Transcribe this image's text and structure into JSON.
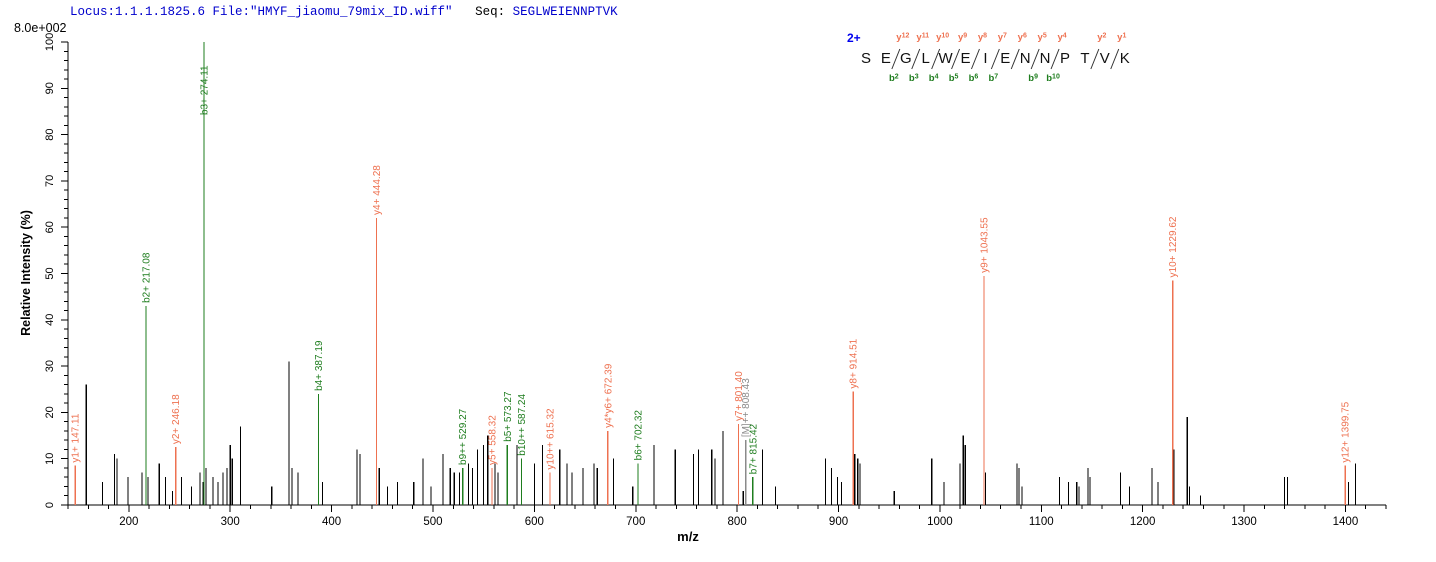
{
  "header": {
    "locus_file": "Locus:1.1.1.1825.6 File:\"HMYF_jiaomu_79mix_ID.wiff\"",
    "seq_label": "Seq:",
    "sequence": "SEGLWEIENNPTVK",
    "max_intensity_label": "8.0e+002"
  },
  "colors": {
    "y_ion": "#ee7150",
    "b_ion": "#1e7d1e",
    "precursor": "#8a8a8a",
    "peak_black": "#000000",
    "header_blue": "#0000cc",
    "charge_blue": "#0000ee",
    "axis_black": "#000000"
  },
  "chart_data": {
    "type": "bar",
    "title": "",
    "xlabel": "m/z",
    "ylabel": "Relative  Intensity (%)",
    "xlim": [
      140,
      1440
    ],
    "ylim": [
      0,
      100
    ],
    "x_major_ticks": [
      200,
      300,
      400,
      500,
      600,
      700,
      800,
      900,
      1000,
      1100,
      1200,
      1300,
      1400
    ],
    "x_minor_step": 20,
    "y_major_ticks": [
      0,
      10,
      20,
      30,
      40,
      50,
      60,
      70,
      80,
      90,
      100
    ],
    "y_minor_step": 2,
    "grid": false,
    "precursor_charge": "2+",
    "peptide": {
      "residues": [
        "S",
        "E",
        "G",
        "L",
        "W",
        "E",
        "I",
        "E",
        "N",
        "N",
        "P",
        "T",
        "V",
        "K"
      ],
      "cleavages": [
        {
          "after": 1,
          "y": "y12",
          "b": "b2"
        },
        {
          "after": 2,
          "y": "y11",
          "b": "b3"
        },
        {
          "after": 3,
          "y": "y10",
          "b": "b4"
        },
        {
          "after": 4,
          "y": "y9",
          "b": "b5"
        },
        {
          "after": 5,
          "y": "y8",
          "b": "b6"
        },
        {
          "after": 6,
          "y": "y7",
          "b": "b7"
        },
        {
          "after": 7,
          "y": "y6",
          "b": null
        },
        {
          "after": 8,
          "y": "y5",
          "b": "b9"
        },
        {
          "after": 9,
          "y": "y4",
          "b": "b10"
        },
        {
          "after": 11,
          "y": "y2",
          "b": null
        },
        {
          "after": 12,
          "y": "y1",
          "b": null
        }
      ]
    },
    "labeled_peaks": [
      {
        "mz": 147.11,
        "intensity": 8.5,
        "type": "y",
        "label": "y1+ 147.11"
      },
      {
        "mz": 217.08,
        "intensity": 43,
        "type": "b",
        "label": "b2+ 217.08"
      },
      {
        "mz": 246.18,
        "intensity": 12.5,
        "type": "y",
        "label": "y2+ 246.18"
      },
      {
        "mz": 274.11,
        "intensity": 100,
        "type": "b",
        "label": "b3+ 274.11"
      },
      {
        "mz": 387.19,
        "intensity": 24,
        "type": "b",
        "label": "b4+ 387.19"
      },
      {
        "mz": 444.28,
        "intensity": 62,
        "type": "y",
        "label": "y4+ 444.28"
      },
      {
        "mz": 529.27,
        "intensity": 8,
        "type": "b",
        "label": "b9++ 529.27"
      },
      {
        "mz": 558.32,
        "intensity": 8,
        "type": "y",
        "label": "y5+ 558.32"
      },
      {
        "mz": 573.27,
        "intensity": 13,
        "type": "b",
        "label": "b5+ 573.27"
      },
      {
        "mz": 587.24,
        "intensity": 10,
        "type": "b",
        "label": "b10++ 587.24"
      },
      {
        "mz": 615.32,
        "intensity": 7,
        "type": "y",
        "label": "y10++ 615.32"
      },
      {
        "mz": 672.39,
        "intensity": 16,
        "type": "y",
        "label": "y4*y6+ 672.39"
      },
      {
        "mz": 702.32,
        "intensity": 9,
        "type": "b",
        "label": "b6+ 702.32"
      },
      {
        "mz": 801.4,
        "intensity": 17.5,
        "type": "y",
        "label": "y7+ 801.40"
      },
      {
        "mz": 808.43,
        "intensity": 14,
        "type": "M",
        "label": "[M]++ 808.43"
      },
      {
        "mz": 815.42,
        "intensity": 6,
        "type": "b",
        "label": "b7+ 815.42"
      },
      {
        "mz": 914.51,
        "intensity": 24.5,
        "type": "y",
        "label": "y8+ 914.51"
      },
      {
        "mz": 1043.55,
        "intensity": 49.5,
        "type": "y",
        "label": "y9+ 1043.55"
      },
      {
        "mz": 1229.62,
        "intensity": 48.5,
        "type": "y",
        "label": "y10+ 1229.62"
      },
      {
        "mz": 1399.75,
        "intensity": 8.5,
        "type": "y",
        "label": "y12+ 1399.75"
      }
    ],
    "unlabeled_peaks": [
      [
        158,
        26
      ],
      [
        174,
        5
      ],
      [
        186,
        11
      ],
      [
        188.5,
        10
      ],
      [
        199,
        6
      ],
      [
        213,
        7
      ],
      [
        219,
        6
      ],
      [
        230,
        9
      ],
      [
        236,
        6
      ],
      [
        243,
        3
      ],
      [
        252,
        6
      ],
      [
        262,
        4
      ],
      [
        270,
        7
      ],
      [
        273,
        5
      ],
      [
        276,
        8
      ],
      [
        283,
        6
      ],
      [
        288,
        5
      ],
      [
        293,
        7
      ],
      [
        297,
        8
      ],
      [
        300,
        13
      ],
      [
        302,
        10
      ],
      [
        310,
        17
      ],
      [
        341,
        4
      ],
      [
        358,
        31
      ],
      [
        361,
        8
      ],
      [
        367,
        7
      ],
      [
        391,
        5
      ],
      [
        425,
        12
      ],
      [
        428,
        11
      ],
      [
        447,
        8
      ],
      [
        455,
        4
      ],
      [
        465,
        5
      ],
      [
        481,
        5
      ],
      [
        490,
        10
      ],
      [
        498,
        4
      ],
      [
        510,
        11
      ],
      [
        517,
        8
      ],
      [
        521,
        7
      ],
      [
        526,
        7
      ],
      [
        535,
        9
      ],
      [
        539,
        8
      ],
      [
        544,
        12
      ],
      [
        550,
        13
      ],
      [
        554,
        15
      ],
      [
        561,
        9
      ],
      [
        564,
        7
      ],
      [
        583,
        13
      ],
      [
        600,
        9
      ],
      [
        608,
        13
      ],
      [
        625,
        12
      ],
      [
        632,
        9
      ],
      [
        637,
        7
      ],
      [
        648,
        8
      ],
      [
        659,
        9
      ],
      [
        662,
        8
      ],
      [
        678,
        10
      ],
      [
        697,
        4
      ],
      [
        718,
        13
      ],
      [
        739,
        12
      ],
      [
        757,
        11
      ],
      [
        762,
        12
      ],
      [
        775,
        12
      ],
      [
        778,
        10
      ],
      [
        786,
        16
      ],
      [
        806,
        3
      ],
      [
        825,
        12
      ],
      [
        838,
        4
      ],
      [
        887,
        10
      ],
      [
        893,
        8
      ],
      [
        899,
        6
      ],
      [
        903,
        5
      ],
      [
        916,
        11
      ],
      [
        919,
        10
      ],
      [
        921,
        9
      ],
      [
        955,
        3
      ],
      [
        992,
        10
      ],
      [
        1004,
        5
      ],
      [
        1020,
        9
      ],
      [
        1023,
        15
      ],
      [
        1025,
        13
      ],
      [
        1045,
        7
      ],
      [
        1076,
        9
      ],
      [
        1078,
        8
      ],
      [
        1081,
        4
      ],
      [
        1118,
        6
      ],
      [
        1127,
        5
      ],
      [
        1135,
        5
      ],
      [
        1137,
        4
      ],
      [
        1146,
        8
      ],
      [
        1148,
        6
      ],
      [
        1178,
        7
      ],
      [
        1187,
        4
      ],
      [
        1209,
        8
      ],
      [
        1215,
        5
      ],
      [
        1231,
        12
      ],
      [
        1244,
        19
      ],
      [
        1246,
        4
      ],
      [
        1257,
        2
      ],
      [
        1340,
        6
      ],
      [
        1343,
        6
      ],
      [
        1403,
        5
      ],
      [
        1410,
        9
      ]
    ]
  }
}
